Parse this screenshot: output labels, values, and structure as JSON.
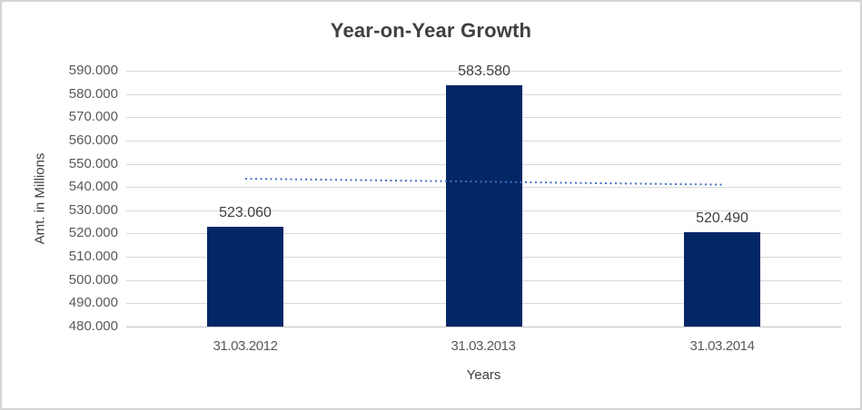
{
  "frame": {
    "background": "#ffffff",
    "border_color": "#d4d4d4"
  },
  "chart_data": {
    "type": "bar",
    "title": "Year-on-Year Growth",
    "xlabel": "Years",
    "ylabel": "Amt. in Millions",
    "categories": [
      "31.03.2012",
      "31.03.2013",
      "31.03.2014"
    ],
    "values": [
      523.06,
      583.58,
      520.49
    ],
    "value_labels": [
      "523.060",
      "583.580",
      "520.490"
    ],
    "ylim": [
      480,
      590
    ],
    "y_ticks": [
      {
        "value": 590,
        "label": "590.000"
      },
      {
        "value": 580,
        "label": "580.000"
      },
      {
        "value": 570,
        "label": "570.000"
      },
      {
        "value": 560,
        "label": "560.000"
      },
      {
        "value": 550,
        "label": "550.000"
      },
      {
        "value": 540,
        "label": "540.000"
      },
      {
        "value": 530,
        "label": "530.000"
      },
      {
        "value": 520,
        "label": "520.000"
      },
      {
        "value": 510,
        "label": "510.000"
      },
      {
        "value": 500,
        "label": "500.000"
      },
      {
        "value": 490,
        "label": "490.000"
      },
      {
        "value": 480,
        "label": "480.000"
      }
    ],
    "grid": true,
    "legend_position": "none",
    "bar_color": "#032667",
    "trendline": {
      "type": "linear",
      "style": "dotted",
      "color": "#4472C4",
      "start_value": 543.66,
      "end_value": 541.09
    },
    "colors": {
      "gridline": "#d9d9d9",
      "axis_line": "#c3c3c3",
      "title_text": "#404040",
      "tick_text": "#595959",
      "data_label_text": "#404040"
    }
  }
}
